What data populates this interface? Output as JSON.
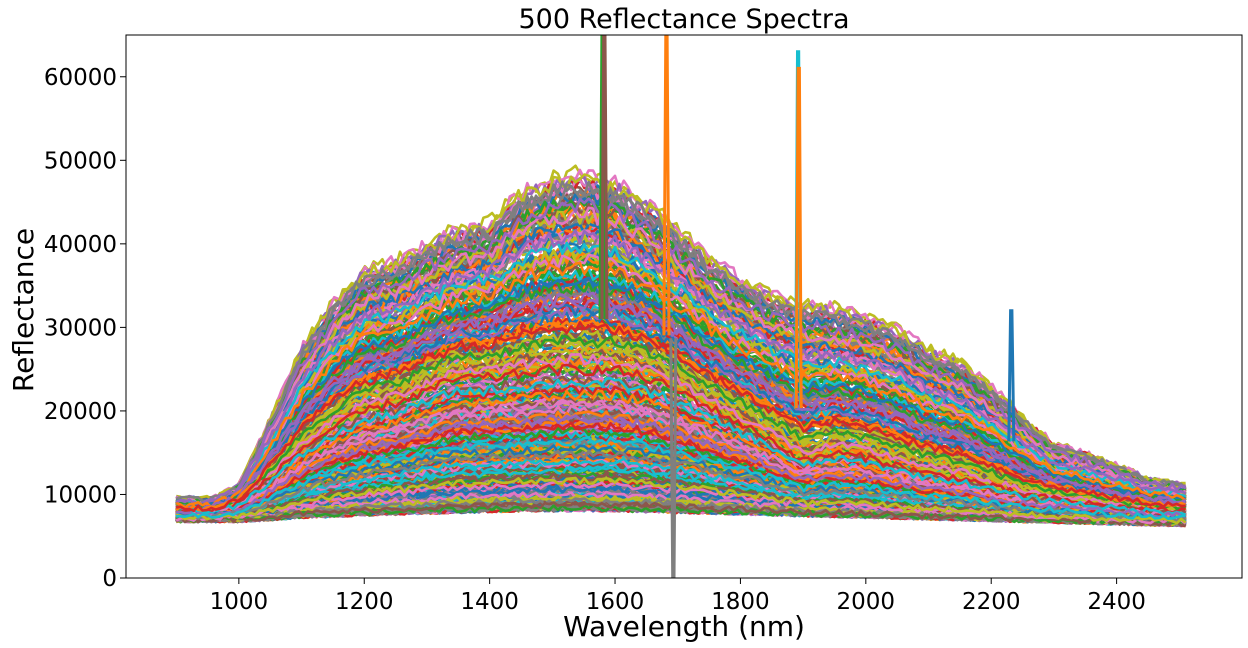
{
  "chart_data": {
    "type": "line",
    "title": "500 Reflectance Spectra",
    "xlabel": "Wavelength (nm)",
    "ylabel": "Reflectance",
    "xlim": [
      820,
      2600
    ],
    "ylim": [
      0,
      65000
    ],
    "xticks": [
      1000,
      1200,
      1400,
      1600,
      1800,
      2000,
      2200,
      2400
    ],
    "yticks": [
      0,
      10000,
      20000,
      30000,
      40000,
      50000,
      60000
    ],
    "grid": false,
    "legend": "none",
    "series_count": 500,
    "palette": [
      "#1f77b4",
      "#ff7f0e",
      "#2ca02c",
      "#d62728",
      "#9467bd",
      "#8c564b",
      "#e377c2",
      "#7f7f7f",
      "#bcbd22",
      "#17becf"
    ],
    "x_range_data": [
      900,
      2515
    ],
    "envelope_profile": {
      "x": [
        900,
        960,
        1000,
        1050,
        1100,
        1150,
        1200,
        1250,
        1300,
        1350,
        1400,
        1450,
        1500,
        1550,
        1600,
        1650,
        1700,
        1750,
        1800,
        1850,
        1900,
        1950,
        2000,
        2050,
        2100,
        2150,
        2200,
        2250,
        2300,
        2350,
        2400,
        2450,
        2515
      ],
      "upper": [
        9500,
        9500,
        11000,
        19000,
        27500,
        33000,
        37000,
        38000,
        40000,
        42000,
        42500,
        46500,
        48000,
        48500,
        47500,
        45000,
        42000,
        38500,
        36000,
        34000,
        33000,
        32500,
        31500,
        30000,
        27500,
        26000,
        23000,
        19500,
        16000,
        15000,
        13500,
        12000,
        11000
      ],
      "typical": [
        8000,
        8000,
        9000,
        12000,
        15500,
        18000,
        20000,
        21000,
        22500,
        24000,
        24000,
        24500,
        25000,
        25000,
        25000,
        24000,
        22500,
        20500,
        18500,
        16500,
        14000,
        15000,
        14500,
        13500,
        12500,
        12000,
        11000,
        10000,
        9500,
        9000,
        8500,
        8200,
        8000
      ],
      "lower": [
        7000,
        7000,
        7000,
        7200,
        7500,
        7600,
        7800,
        7900,
        8000,
        8100,
        8200,
        8300,
        8300,
        8300,
        8300,
        8200,
        8100,
        8000,
        7900,
        7800,
        7700,
        7600,
        7500,
        7400,
        7300,
        7200,
        7100,
        7000,
        6900,
        6800,
        6700,
        6600,
        6500
      ]
    },
    "spikes": [
      {
        "x": 1580,
        "peak": 65000,
        "color": "#2ca02c"
      },
      {
        "x": 1583,
        "peak": 65000,
        "color": "#8c564b"
      },
      {
        "x": 1682,
        "peak": 65000,
        "color": "#ff7f0e"
      },
      {
        "x": 1693,
        "peak": 0,
        "color": "#7f7f7f"
      },
      {
        "x": 1892,
        "peak": 63000,
        "color": "#17becf"
      },
      {
        "x": 1893,
        "peak": 61000,
        "color": "#ff7f0e"
      },
      {
        "x": 2232,
        "peak": 32000,
        "color": "#1f77b4"
      }
    ]
  }
}
